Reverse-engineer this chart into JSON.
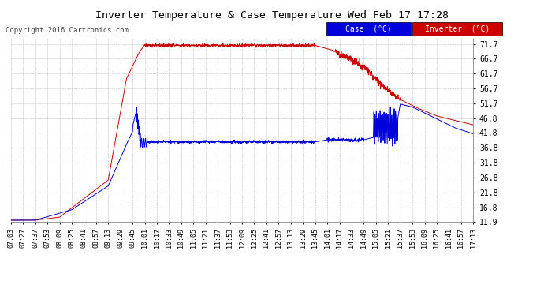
{
  "title": "Inverter Temperature & Case Temperature Wed Feb 17 17:28",
  "copyright": "Copyright 2016 Cartronics.com",
  "bg_color": "#ffffff",
  "plot_bg_color": "#ffffff",
  "grid_color": "#bbbbbb",
  "yticks": [
    11.9,
    16.8,
    21.8,
    26.8,
    31.8,
    36.8,
    41.8,
    46.8,
    51.7,
    56.7,
    61.7,
    66.7,
    71.7
  ],
  "ylim_min": 11.9,
  "ylim_max": 73.5,
  "legend_case_label": "Case  (°C)",
  "legend_inv_label": "Inverter  (°C)",
  "legend_case_bg": "#0000dd",
  "legend_inv_bg": "#cc0000",
  "x_tick_labels": [
    "07:03",
    "07:27",
    "07:37",
    "07:53",
    "08:09",
    "08:25",
    "08:41",
    "08:57",
    "09:13",
    "09:29",
    "09:45",
    "10:01",
    "10:17",
    "10:33",
    "10:49",
    "11:05",
    "11:21",
    "11:37",
    "11:53",
    "12:09",
    "12:25",
    "12:41",
    "12:57",
    "13:13",
    "13:29",
    "13:45",
    "14:01",
    "14:17",
    "14:33",
    "14:49",
    "15:05",
    "15:21",
    "15:37",
    "15:53",
    "16:09",
    "16:25",
    "16:41",
    "16:57",
    "17:13"
  ],
  "case_color": "#0000dd",
  "inverter_color": "#cc0000"
}
